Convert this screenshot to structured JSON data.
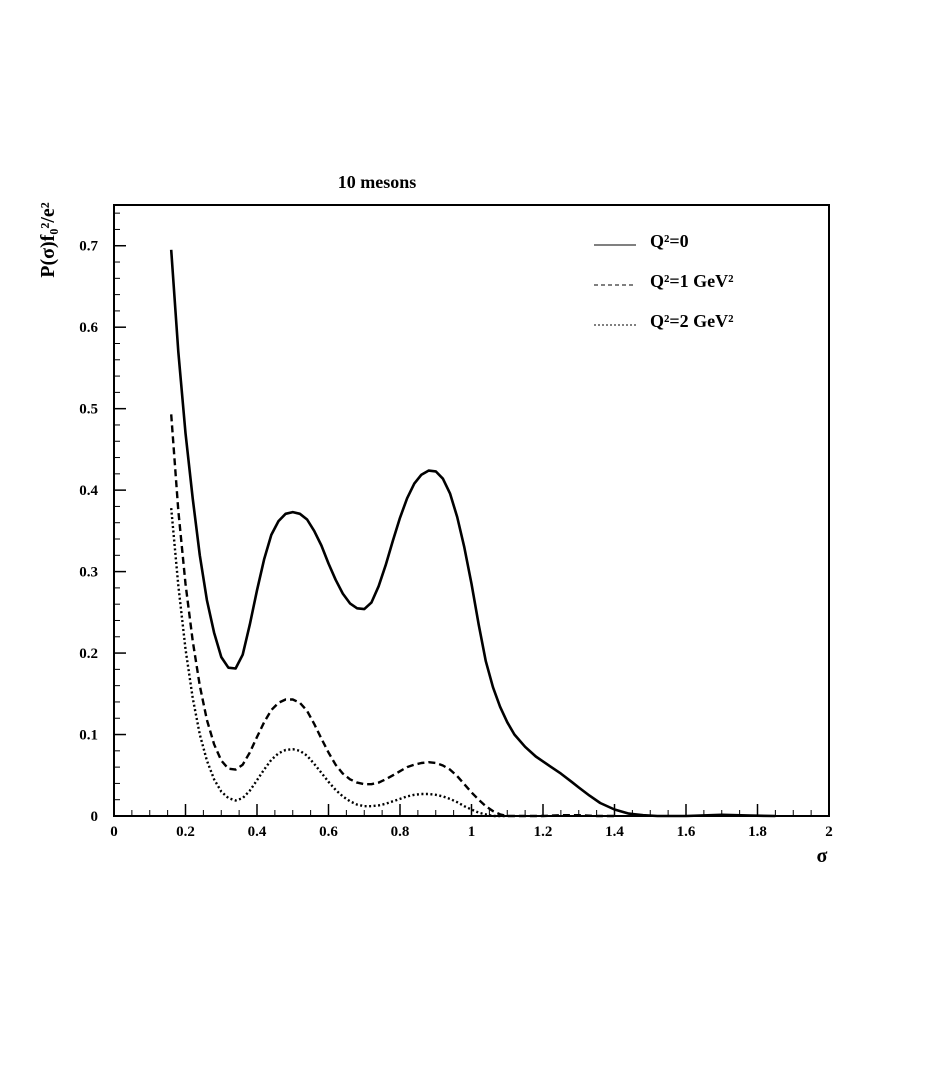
{
  "chart_data": {
    "type": "line",
    "title": "10 mesons",
    "xlabel": "σ",
    "ylabel": "P(σ)f₀²/e²",
    "xlim": [
      0,
      2
    ],
    "ylim": [
      0,
      0.75
    ],
    "x_ticks": [
      0,
      0.2,
      0.4,
      0.6,
      0.8,
      1,
      1.2,
      1.4,
      1.6,
      1.8,
      2
    ],
    "x_tick_labels": [
      "0",
      "0.2",
      "0.4",
      "0.6",
      "0.8",
      "1",
      "1.2",
      "1.4",
      "1.6",
      "1.8",
      "2"
    ],
    "y_ticks": [
      0,
      0.1,
      0.2,
      0.3,
      0.4,
      0.5,
      0.6,
      0.7
    ],
    "y_tick_labels": [
      "0",
      "0.1",
      "0.2",
      "0.3",
      "0.4",
      "0.5",
      "0.6",
      "0.7"
    ],
    "grid": false,
    "legend_position": "top-right",
    "series": [
      {
        "name": "Q²=0",
        "style": "solid",
        "points": [
          [
            0.16,
            0.695
          ],
          [
            0.18,
            0.57
          ],
          [
            0.2,
            0.47
          ],
          [
            0.22,
            0.39
          ],
          [
            0.24,
            0.32
          ],
          [
            0.26,
            0.265
          ],
          [
            0.28,
            0.225
          ],
          [
            0.3,
            0.195
          ],
          [
            0.32,
            0.182
          ],
          [
            0.34,
            0.181
          ],
          [
            0.36,
            0.198
          ],
          [
            0.38,
            0.235
          ],
          [
            0.4,
            0.277
          ],
          [
            0.42,
            0.315
          ],
          [
            0.44,
            0.345
          ],
          [
            0.46,
            0.362
          ],
          [
            0.48,
            0.371
          ],
          [
            0.5,
            0.373
          ],
          [
            0.52,
            0.371
          ],
          [
            0.54,
            0.364
          ],
          [
            0.56,
            0.35
          ],
          [
            0.58,
            0.332
          ],
          [
            0.6,
            0.31
          ],
          [
            0.62,
            0.29
          ],
          [
            0.64,
            0.273
          ],
          [
            0.66,
            0.261
          ],
          [
            0.68,
            0.255
          ],
          [
            0.7,
            0.254
          ],
          [
            0.72,
            0.262
          ],
          [
            0.74,
            0.282
          ],
          [
            0.76,
            0.308
          ],
          [
            0.78,
            0.338
          ],
          [
            0.8,
            0.366
          ],
          [
            0.82,
            0.39
          ],
          [
            0.84,
            0.408
          ],
          [
            0.86,
            0.419
          ],
          [
            0.88,
            0.424
          ],
          [
            0.9,
            0.423
          ],
          [
            0.92,
            0.414
          ],
          [
            0.94,
            0.396
          ],
          [
            0.96,
            0.367
          ],
          [
            0.98,
            0.33
          ],
          [
            1.0,
            0.285
          ],
          [
            1.02,
            0.235
          ],
          [
            1.04,
            0.19
          ],
          [
            1.06,
            0.158
          ],
          [
            1.08,
            0.134
          ],
          [
            1.1,
            0.115
          ],
          [
            1.12,
            0.1
          ],
          [
            1.15,
            0.085
          ],
          [
            1.18,
            0.073
          ],
          [
            1.2,
            0.067
          ],
          [
            1.22,
            0.061
          ],
          [
            1.25,
            0.052
          ],
          [
            1.28,
            0.042
          ],
          [
            1.3,
            0.035
          ],
          [
            1.33,
            0.025
          ],
          [
            1.36,
            0.016
          ],
          [
            1.4,
            0.008
          ],
          [
            1.44,
            0.003
          ],
          [
            1.48,
            0.001
          ],
          [
            1.52,
            0.0
          ],
          [
            1.6,
            0.0
          ],
          [
            1.7,
            0.0015
          ],
          [
            1.78,
            0.0005
          ],
          [
            1.85,
            0.0
          ]
        ]
      },
      {
        "name": "Q²=1 GeV²",
        "style": "dashed",
        "points": [
          [
            0.16,
            0.493
          ],
          [
            0.18,
            0.375
          ],
          [
            0.2,
            0.285
          ],
          [
            0.22,
            0.215
          ],
          [
            0.24,
            0.16
          ],
          [
            0.26,
            0.118
          ],
          [
            0.28,
            0.088
          ],
          [
            0.3,
            0.068
          ],
          [
            0.32,
            0.058
          ],
          [
            0.34,
            0.057
          ],
          [
            0.36,
            0.063
          ],
          [
            0.38,
            0.078
          ],
          [
            0.4,
            0.097
          ],
          [
            0.42,
            0.115
          ],
          [
            0.44,
            0.13
          ],
          [
            0.46,
            0.139
          ],
          [
            0.48,
            0.143
          ],
          [
            0.5,
            0.143
          ],
          [
            0.52,
            0.139
          ],
          [
            0.54,
            0.129
          ],
          [
            0.56,
            0.113
          ],
          [
            0.58,
            0.095
          ],
          [
            0.6,
            0.078
          ],
          [
            0.62,
            0.063
          ],
          [
            0.64,
            0.052
          ],
          [
            0.66,
            0.045
          ],
          [
            0.68,
            0.041
          ],
          [
            0.7,
            0.039
          ],
          [
            0.72,
            0.039
          ],
          [
            0.74,
            0.041
          ],
          [
            0.76,
            0.045
          ],
          [
            0.78,
            0.05
          ],
          [
            0.8,
            0.055
          ],
          [
            0.82,
            0.06
          ],
          [
            0.84,
            0.063
          ],
          [
            0.86,
            0.065
          ],
          [
            0.88,
            0.066
          ],
          [
            0.9,
            0.065
          ],
          [
            0.92,
            0.062
          ],
          [
            0.94,
            0.057
          ],
          [
            0.96,
            0.049
          ],
          [
            0.98,
            0.039
          ],
          [
            1.0,
            0.029
          ],
          [
            1.02,
            0.02
          ],
          [
            1.04,
            0.012
          ],
          [
            1.06,
            0.006
          ],
          [
            1.08,
            0.002
          ],
          [
            1.1,
            0.0
          ],
          [
            1.15,
            0.0
          ],
          [
            1.2,
            0.0
          ],
          [
            1.25,
            0.001
          ],
          [
            1.3,
            0.001
          ],
          [
            1.35,
            0.0
          ],
          [
            1.4,
            0.0
          ]
        ]
      },
      {
        "name": "Q²=2 GeV²",
        "style": "dotted",
        "points": [
          [
            0.16,
            0.378
          ],
          [
            0.18,
            0.283
          ],
          [
            0.2,
            0.205
          ],
          [
            0.22,
            0.145
          ],
          [
            0.24,
            0.1
          ],
          [
            0.26,
            0.068
          ],
          [
            0.28,
            0.045
          ],
          [
            0.3,
            0.03
          ],
          [
            0.32,
            0.022
          ],
          [
            0.34,
            0.019
          ],
          [
            0.36,
            0.022
          ],
          [
            0.38,
            0.031
          ],
          [
            0.4,
            0.044
          ],
          [
            0.42,
            0.057
          ],
          [
            0.44,
            0.069
          ],
          [
            0.46,
            0.077
          ],
          [
            0.48,
            0.081
          ],
          [
            0.5,
            0.082
          ],
          [
            0.52,
            0.08
          ],
          [
            0.54,
            0.074
          ],
          [
            0.56,
            0.064
          ],
          [
            0.58,
            0.053
          ],
          [
            0.6,
            0.042
          ],
          [
            0.62,
            0.032
          ],
          [
            0.64,
            0.024
          ],
          [
            0.66,
            0.018
          ],
          [
            0.68,
            0.014
          ],
          [
            0.7,
            0.012
          ],
          [
            0.72,
            0.012
          ],
          [
            0.74,
            0.013
          ],
          [
            0.76,
            0.015
          ],
          [
            0.78,
            0.018
          ],
          [
            0.8,
            0.021
          ],
          [
            0.82,
            0.024
          ],
          [
            0.84,
            0.026
          ],
          [
            0.86,
            0.027
          ],
          [
            0.88,
            0.027
          ],
          [
            0.9,
            0.026
          ],
          [
            0.92,
            0.024
          ],
          [
            0.94,
            0.021
          ],
          [
            0.96,
            0.017
          ],
          [
            0.98,
            0.012
          ],
          [
            1.0,
            0.008
          ],
          [
            1.02,
            0.004
          ],
          [
            1.04,
            0.002
          ],
          [
            1.06,
            0.0
          ],
          [
            1.1,
            0.0
          ]
        ]
      }
    ]
  }
}
